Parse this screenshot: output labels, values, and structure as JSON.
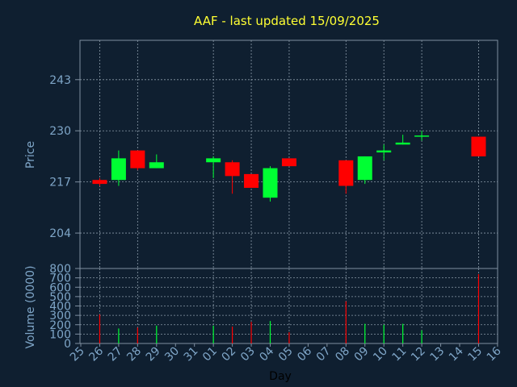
{
  "chart_data": [
    {
      "type": "candlestick",
      "title": "AAF - last updated 15/09/2025",
      "ylabel": "Price",
      "ylim": [
        195,
        253
      ],
      "yticks": [
        204,
        217,
        230,
        243
      ],
      "grid": true,
      "colors": {
        "up": "#00ff33",
        "down": "#ff0000"
      },
      "x": [
        "26",
        "27",
        "28",
        "29",
        "01",
        "02",
        "03",
        "04",
        "05",
        "08",
        "09",
        "10",
        "11",
        "12",
        "15"
      ],
      "ohlc": [
        {
          "o": 217.5,
          "h": 218.0,
          "l": 216.0,
          "c": 216.5
        },
        {
          "o": 217.5,
          "h": 225.0,
          "l": 216.0,
          "c": 223.0
        },
        {
          "o": 225.0,
          "h": 225.0,
          "l": 220.0,
          "c": 220.5
        },
        {
          "o": 220.5,
          "h": 224.0,
          "l": 220.5,
          "c": 222.0
        },
        {
          "o": 222.0,
          "h": 223.5,
          "l": 218.0,
          "c": 223.0
        },
        {
          "o": 222.0,
          "h": 222.5,
          "l": 214.0,
          "c": 218.5
        },
        {
          "o": 219.0,
          "h": 219.0,
          "l": 215.5,
          "c": 215.5
        },
        {
          "o": 213.0,
          "h": 221.0,
          "l": 212.0,
          "c": 220.5
        },
        {
          "o": 223.0,
          "h": 223.0,
          "l": 221.0,
          "c": 221.0
        },
        {
          "o": 222.5,
          "h": 222.5,
          "l": 214.0,
          "c": 216.0
        },
        {
          "o": 217.5,
          "h": 223.5,
          "l": 216.5,
          "c": 223.5
        },
        {
          "o": 224.5,
          "h": 226.5,
          "l": 222.5,
          "c": 225.0
        },
        {
          "o": 226.5,
          "h": 229.0,
          "l": 226.5,
          "c": 227.0
        },
        {
          "o": 228.5,
          "h": 230.0,
          "l": 227.5,
          "c": 228.8
        },
        {
          "o": 228.5,
          "h": 228.5,
          "l": 223.5,
          "c": 223.5
        }
      ]
    },
    {
      "type": "bar",
      "ylabel": "Volume (0000)",
      "xlabel": "Day",
      "ylim": [
        0,
        800
      ],
      "yticks": [
        0,
        100,
        200,
        300,
        400,
        500,
        600,
        700,
        800
      ],
      "grid": true,
      "categories": [
        "26",
        "27",
        "28",
        "29",
        "01",
        "02",
        "03",
        "04",
        "05",
        "08",
        "09",
        "10",
        "11",
        "12",
        "15"
      ],
      "values": [
        310,
        160,
        170,
        190,
        190,
        180,
        230,
        240,
        120,
        450,
        210,
        200,
        210,
        140,
        740
      ],
      "bar_colors": [
        "#ff0000",
        "#00ff33",
        "#ff0000",
        "#00ff33",
        "#00ff33",
        "#ff0000",
        "#ff0000",
        "#00ff33",
        "#ff0000",
        "#ff0000",
        "#00ff33",
        "#00ff33",
        "#00ff33",
        "#00ff33",
        "#ff0000"
      ]
    }
  ],
  "x_axis_ticks": [
    "25",
    "26",
    "27",
    "28",
    "29",
    "30",
    "31",
    "01",
    "02",
    "03",
    "04",
    "05",
    "06",
    "07",
    "08",
    "09",
    "10",
    "11",
    "12",
    "13",
    "14",
    "15",
    "16"
  ]
}
